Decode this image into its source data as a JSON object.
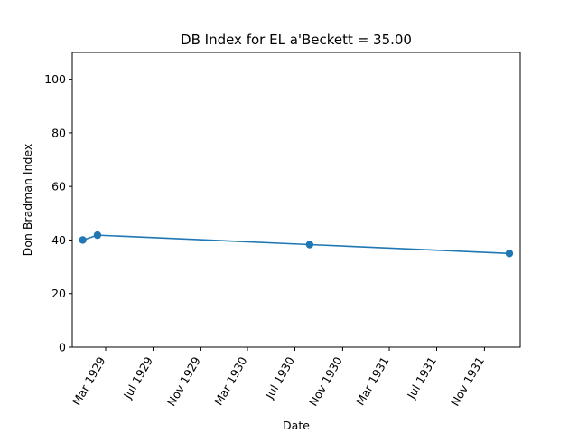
{
  "chart_data": {
    "type": "line",
    "title": "DB Index for EL a'Beckett = 35.00",
    "xlabel": "Date",
    "ylabel": "Don Bradman Index",
    "ylim": [
      0,
      110
    ],
    "xlim": [
      "1928-12-05",
      "1932-02-01"
    ],
    "yticks": [
      0,
      20,
      40,
      60,
      80,
      100
    ],
    "xticks": [
      {
        "date": "1929-03-01",
        "label": "Mar 1929"
      },
      {
        "date": "1929-07-01",
        "label": "Jul 1929"
      },
      {
        "date": "1929-11-01",
        "label": "Nov 1929"
      },
      {
        "date": "1930-03-01",
        "label": "Mar 1930"
      },
      {
        "date": "1930-07-01",
        "label": "Jul 1930"
      },
      {
        "date": "1930-11-01",
        "label": "Nov 1930"
      },
      {
        "date": "1931-03-01",
        "label": "Mar 1931"
      },
      {
        "date": "1931-07-01",
        "label": "Jul 1931"
      },
      {
        "date": "1931-11-01",
        "label": "Nov 1931"
      }
    ],
    "series": [
      {
        "color": "#1f77b4",
        "marker": "circle",
        "x": [
          "1929-01-01",
          "1929-02-08",
          "1930-08-08",
          "1932-01-04"
        ],
        "y": [
          40.0,
          41.8,
          38.3,
          35.0
        ]
      }
    ],
    "grid": false,
    "legend": "none"
  }
}
